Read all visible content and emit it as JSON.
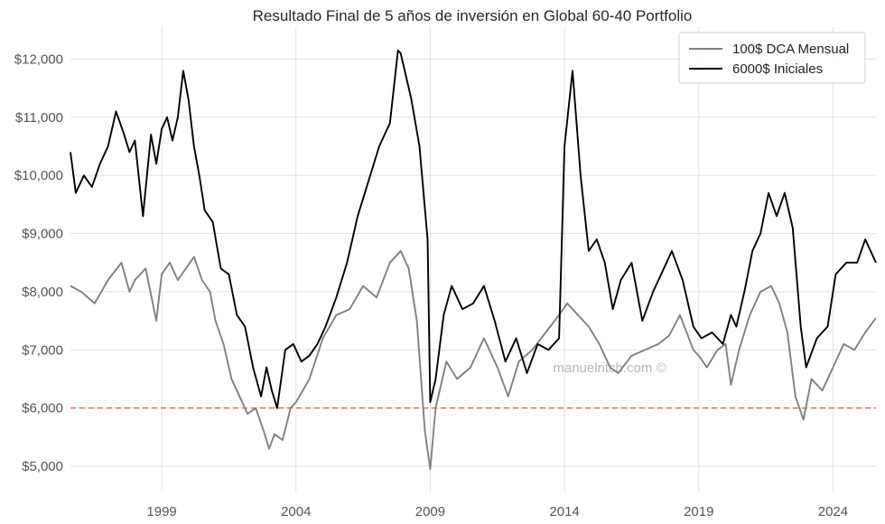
{
  "chart_data": {
    "type": "line",
    "title": "Resultado Final de 5 años de inversión en Global 60-40 Portfolio",
    "xlabel": "",
    "ylabel": "",
    "xlim": [
      1995.6,
      2025.6
    ],
    "ylim": [
      4550,
      12550
    ],
    "x_ticks": [
      1999,
      2004,
      2009,
      2014,
      2019,
      2024
    ],
    "x_tick_labels": [
      "1999",
      "2004",
      "2009",
      "2014",
      "2019",
      "2024"
    ],
    "y_ticks": [
      5000,
      6000,
      7000,
      8000,
      9000,
      10000,
      11000,
      12000
    ],
    "y_tick_labels": [
      "$5,000",
      "$6,000",
      "$7,000",
      "$8,000",
      "$9,000",
      "$10,000",
      "$11,000",
      "$12,000"
    ],
    "grid": true,
    "legend_position": "top-right",
    "reference_line": {
      "y": 6000,
      "color": "#e05c4a",
      "style": "dashed"
    },
    "watermark": "manuelritch.com ©",
    "series": [
      {
        "name": "100$ DCA Mensual",
        "color": "#808080",
        "x": [
          1995.6,
          1996.0,
          1996.5,
          1997.0,
          1997.5,
          1997.8,
          1998.0,
          1998.4,
          1998.8,
          1999.0,
          1999.3,
          1999.6,
          1999.9,
          2000.2,
          2000.5,
          2000.8,
          2001.0,
          2001.3,
          2001.6,
          2001.9,
          2002.2,
          2002.5,
          2002.8,
          2003.0,
          2003.2,
          2003.5,
          2003.8,
          2004.0,
          2004.5,
          2005.0,
          2005.5,
          2006.0,
          2006.5,
          2007.0,
          2007.5,
          2007.9,
          2008.2,
          2008.5,
          2008.8,
          2009.0,
          2009.2,
          2009.6,
          2010.0,
          2010.5,
          2011.0,
          2011.5,
          2011.9,
          2012.3,
          2012.8,
          2013.3,
          2013.8,
          2014.1,
          2014.5,
          2014.9,
          2015.3,
          2015.7,
          2016.0,
          2016.5,
          2017.0,
          2017.5,
          2017.9,
          2018.3,
          2018.8,
          2019.0,
          2019.3,
          2019.7,
          2020.0,
          2020.2,
          2020.5,
          2020.9,
          2021.3,
          2021.7,
          2022.0,
          2022.3,
          2022.6,
          2022.9,
          2023.2,
          2023.6,
          2024.0,
          2024.4,
          2024.8,
          2025.2,
          2025.6
        ],
        "values": [
          8100,
          8000,
          7800,
          8200,
          8500,
          8000,
          8200,
          8400,
          7500,
          8300,
          8500,
          8200,
          8400,
          8600,
          8200,
          8000,
          7500,
          7100,
          6500,
          6200,
          5900,
          6000,
          5600,
          5300,
          5550,
          5450,
          6000,
          6100,
          6500,
          7200,
          7600,
          7700,
          8100,
          7900,
          8500,
          8700,
          8400,
          7500,
          5600,
          4950,
          6000,
          6800,
          6500,
          6700,
          7200,
          6700,
          6200,
          6800,
          7000,
          7300,
          7600,
          7800,
          7600,
          7400,
          7100,
          6700,
          6600,
          6900,
          7000,
          7100,
          7250,
          7600,
          7000,
          6900,
          6700,
          7000,
          7100,
          6400,
          7000,
          7600,
          8000,
          8100,
          7800,
          7300,
          6200,
          5800,
          6500,
          6300,
          6700,
          7100,
          7000,
          7300,
          7550
        ]
      },
      {
        "name": "6000$ Iniciales",
        "color": "#000000",
        "x": [
          1995.6,
          1995.8,
          1996.1,
          1996.4,
          1996.7,
          1997.0,
          1997.3,
          1997.6,
          1997.8,
          1998.0,
          1998.3,
          1998.6,
          1998.8,
          1999.0,
          1999.2,
          1999.4,
          1999.6,
          1999.8,
          2000.0,
          2000.2,
          2000.4,
          2000.6,
          2000.9,
          2001.2,
          2001.5,
          2001.8,
          2002.1,
          2002.4,
          2002.7,
          2002.9,
          2003.1,
          2003.3,
          2003.6,
          2003.9,
          2004.2,
          2004.5,
          2004.8,
          2005.1,
          2005.5,
          2005.9,
          2006.3,
          2006.7,
          2007.1,
          2007.5,
          2007.8,
          2007.9,
          2008.1,
          2008.3,
          2008.6,
          2008.9,
          2009.0,
          2009.2,
          2009.5,
          2009.8,
          2010.2,
          2010.6,
          2011.0,
          2011.4,
          2011.8,
          2012.2,
          2012.6,
          2013.0,
          2013.4,
          2013.8,
          2014.0,
          2014.3,
          2014.6,
          2014.9,
          2015.2,
          2015.5,
          2015.8,
          2016.1,
          2016.5,
          2016.9,
          2017.3,
          2017.7,
          2018.0,
          2018.4,
          2018.8,
          2019.1,
          2019.5,
          2019.9,
          2020.2,
          2020.4,
          2020.7,
          2021.0,
          2021.3,
          2021.6,
          2021.9,
          2022.2,
          2022.5,
          2022.8,
          2023.0,
          2023.4,
          2023.8,
          2024.1,
          2024.5,
          2024.9,
          2025.2,
          2025.6
        ],
        "values": [
          10400,
          9700,
          10000,
          9800,
          10200,
          10500,
          11100,
          10700,
          10400,
          10600,
          9300,
          10700,
          10200,
          10800,
          11000,
          10600,
          11000,
          11800,
          11300,
          10500,
          10000,
          9400,
          9200,
          8400,
          8300,
          7600,
          7400,
          6700,
          6200,
          6700,
          6300,
          6000,
          7000,
          7100,
          6800,
          6900,
          7100,
          7400,
          7900,
          8500,
          9300,
          9900,
          10500,
          10900,
          12150,
          12100,
          11700,
          11300,
          10500,
          8900,
          6100,
          6500,
          7600,
          8100,
          7700,
          7800,
          8100,
          7500,
          6800,
          7200,
          6600,
          7100,
          7000,
          7200,
          10500,
          11800,
          10000,
          8700,
          8900,
          8500,
          7700,
          8200,
          8500,
          7500,
          8000,
          8400,
          8700,
          8200,
          7400,
          7200,
          7300,
          7100,
          7600,
          7400,
          8000,
          8700,
          9000,
          9700,
          9300,
          9700,
          9100,
          7400,
          6700,
          7200,
          7400,
          8300,
          8500,
          8500,
          8900,
          8500
        ]
      }
    ]
  }
}
